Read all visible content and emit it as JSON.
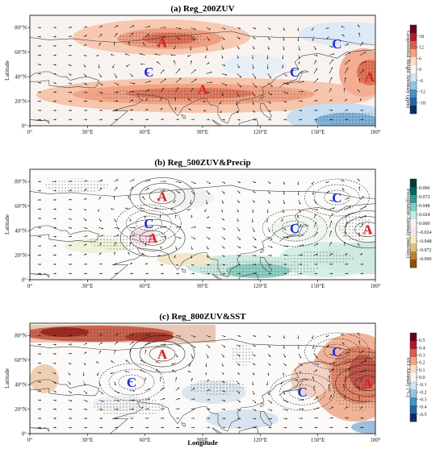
{
  "figure": {
    "x_axis_label": "Longitude",
    "panels": [
      {
        "id": "a",
        "title": "(a) Reg_200ZUV",
        "y_axis_label": "Latitude",
        "colorbar": {
          "label": "Geopotential Height Anomaly (gpm)",
          "ticks": [
            "18",
            "12",
            "6",
            "0",
            "-6",
            "-12",
            "-18"
          ],
          "colors": [
            "#67001f",
            "#b2182b",
            "#d6604d",
            "#f4a582",
            "#fddbc7",
            "#f7f7f7",
            "#d1e5f0",
            "#92c5de",
            "#4393c3",
            "#2166ac",
            "#053061"
          ]
        },
        "markers": [
          {
            "label": "A",
            "type": "anticyclone",
            "lon": 69,
            "lat": 68
          },
          {
            "label": "C",
            "type": "cyclone",
            "lon": 160,
            "lat": 67
          },
          {
            "label": "C",
            "type": "cyclone",
            "lon": 62,
            "lat": 44
          },
          {
            "label": "C",
            "type": "cyclone",
            "lon": 138,
            "lat": 44
          },
          {
            "label": "A",
            "type": "anticyclone",
            "lon": 90,
            "lat": 30
          },
          {
            "label": "A",
            "type": "anticyclone",
            "lon": 177,
            "lat": 40
          }
        ]
      },
      {
        "id": "b",
        "title": "(b) Reg_500ZUV&Precip",
        "y_axis_label": "Latitude",
        "colorbar": {
          "label": "Precipitation Anomaly (mm/day)",
          "ticks": [
            "0.096",
            "0.072",
            "0.048",
            "0.024",
            "0.000",
            "-0.024",
            "-0.048",
            "-0.072",
            "-0.096"
          ],
          "colors": [
            "#003c30",
            "#01665e",
            "#35978f",
            "#80cdc1",
            "#c7eae5",
            "#f5f5f5",
            "#fde0ef",
            "#f6e8c3",
            "#dfc27d",
            "#bf812d",
            "#8c510a"
          ]
        },
        "markers": [
          {
            "label": "A",
            "type": "anticyclone",
            "lon": 69,
            "lat": 68
          },
          {
            "label": "C",
            "type": "cyclone",
            "lon": 160,
            "lat": 67
          },
          {
            "label": "C",
            "type": "cyclone",
            "lon": 62,
            "lat": 46
          },
          {
            "label": "C",
            "type": "cyclone",
            "lon": 138,
            "lat": 42
          },
          {
            "label": "A",
            "type": "anticyclone",
            "lon": 64,
            "lat": 34
          },
          {
            "label": "A",
            "type": "anticyclone",
            "lon": 176,
            "lat": 41
          }
        ]
      },
      {
        "id": "c",
        "title": "(c) Reg_800ZUV&SST",
        "y_axis_label": "Latitude",
        "colorbar": {
          "label": "SST Anomaly (°C)",
          "ticks": [
            "0.5",
            "0.4",
            "0.3",
            "0.2",
            "0.1",
            "0.0",
            "-0.1",
            "-0.2",
            "-0.3",
            "-0.4",
            "-0.5"
          ],
          "colors": [
            "#67001f",
            "#b2182b",
            "#d6604d",
            "#f4a582",
            "#fddbc7",
            "#f7f7f7",
            "#d1e5f0",
            "#92c5de",
            "#4393c3",
            "#2166ac",
            "#053061"
          ]
        },
        "markers": [
          {
            "label": "A",
            "type": "anticyclone",
            "lon": 69,
            "lat": 65
          },
          {
            "label": "C",
            "type": "cyclone",
            "lon": 160,
            "lat": 67
          },
          {
            "label": "C",
            "type": "cyclone",
            "lon": 53,
            "lat": 42
          },
          {
            "label": "C",
            "type": "cyclone",
            "lon": 142,
            "lat": 34
          },
          {
            "label": "A",
            "type": "anticyclone",
            "lon": 176,
            "lat": 41
          }
        ]
      }
    ],
    "lon_ticks": [
      "0°",
      "30°E",
      "60°E",
      "90°E",
      "120°E",
      "150°E",
      "180°"
    ],
    "lat_ticks": [
      "80°N",
      "60°N",
      "40°N",
      "20°N",
      "0°"
    ],
    "lon_range": [
      0,
      180
    ],
    "lat_range": [
      0,
      90
    ]
  }
}
